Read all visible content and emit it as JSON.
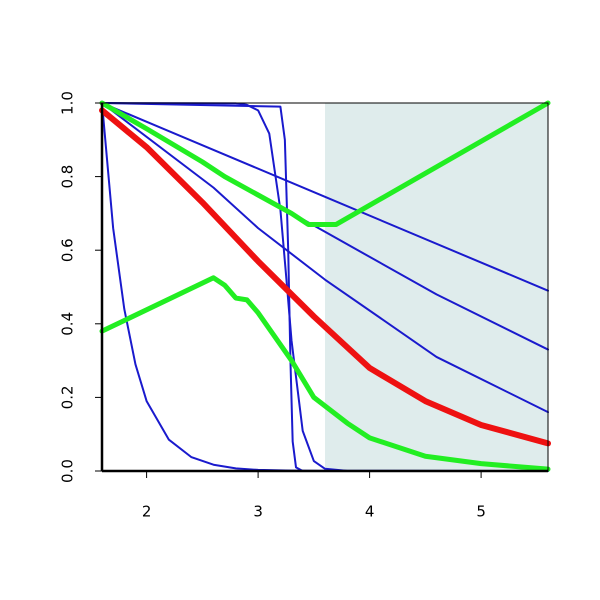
{
  "chart_data": {
    "type": "line",
    "xlim": [
      1.6,
      5.6
    ],
    "ylim": [
      0,
      1
    ],
    "xticks": [
      2,
      3,
      4,
      5
    ],
    "yticks": [
      {
        "value": 0,
        "label": "0.0"
      },
      0.2,
      0.4,
      0.6,
      0.8,
      {
        "value": 1,
        "label": "1.0"
      }
    ],
    "shaded_x": [
      3.6,
      5.6
    ],
    "shade_color": "#dfecec",
    "series": [
      {
        "color": "#1a1acd",
        "x": [
          1.6,
          3.6,
          5.6
        ],
        "values": [
          1,
          0.745,
          0.49
        ]
      },
      {
        "color": "#1a1acd",
        "x": [
          1.6,
          2.6,
          3.6,
          4.6,
          5.6
        ],
        "values": [
          1,
          0.82,
          0.65,
          0.48,
          0.33
        ]
      },
      {
        "color": "#1a1acd",
        "x": [
          1.6,
          2.6,
          3.0,
          3.6,
          4.6,
          5.6
        ],
        "values": [
          1,
          0.77,
          0.66,
          0.52,
          0.31,
          0.16
        ]
      },
      {
        "color": "#1a1acd",
        "x": [
          1.6,
          1.7,
          1.8,
          1.9,
          2.0,
          2.2,
          2.4,
          2.6,
          2.8,
          3.0,
          3.3,
          3.6,
          5.6
        ],
        "values": [
          1,
          0.66,
          0.44,
          0.29,
          0.19,
          0.085,
          0.038,
          0.017,
          0.007,
          0.003,
          0.001,
          0.0003,
          0
        ]
      },
      {
        "color": "#1a1acd",
        "x": [
          1.6,
          2.8,
          2.9,
          3.0,
          3.1,
          3.2,
          3.26,
          3.3,
          3.4,
          3.5,
          3.6,
          3.8,
          5.6
        ],
        "values": [
          1,
          0.999,
          0.995,
          0.98,
          0.917,
          0.71,
          0.5,
          0.354,
          0.109,
          0.027,
          0.006,
          0.0003,
          0
        ]
      },
      {
        "color": "#1a1acd",
        "x": [
          1.6,
          3.2,
          3.24,
          3.27,
          3.29,
          3.31,
          3.34,
          3.4,
          5.6
        ],
        "values": [
          1,
          0.99,
          0.9,
          0.6,
          0.3,
          0.08,
          0.01,
          0,
          0
        ]
      },
      {
        "color": "#ee1111",
        "x": [
          1.6,
          2.0,
          2.5,
          3.0,
          3.5,
          4.0,
          4.5,
          5.0,
          5.6
        ],
        "values": [
          0.98,
          0.88,
          0.73,
          0.57,
          0.42,
          0.28,
          0.19,
          0.125,
          0.075
        ]
      },
      {
        "color": "#22ee22",
        "x": [
          1.6,
          2.0,
          2.5,
          2.7,
          3.0,
          3.3,
          3.45,
          3.7,
          5.6
        ],
        "values": [
          1,
          0.93,
          0.84,
          0.8,
          0.75,
          0.7,
          0.67,
          0.67,
          1
        ]
      },
      {
        "color": "#22ee22",
        "x": [
          1.6,
          2.6,
          2.7,
          2.8,
          2.9,
          3.0,
          3.3,
          3.5,
          3.8,
          4.0,
          4.5,
          5.0,
          5.6
        ],
        "values": [
          0.38,
          0.525,
          0.505,
          0.47,
          0.465,
          0.43,
          0.3,
          0.2,
          0.13,
          0.09,
          0.04,
          0.02,
          0.005
        ]
      }
    ]
  }
}
